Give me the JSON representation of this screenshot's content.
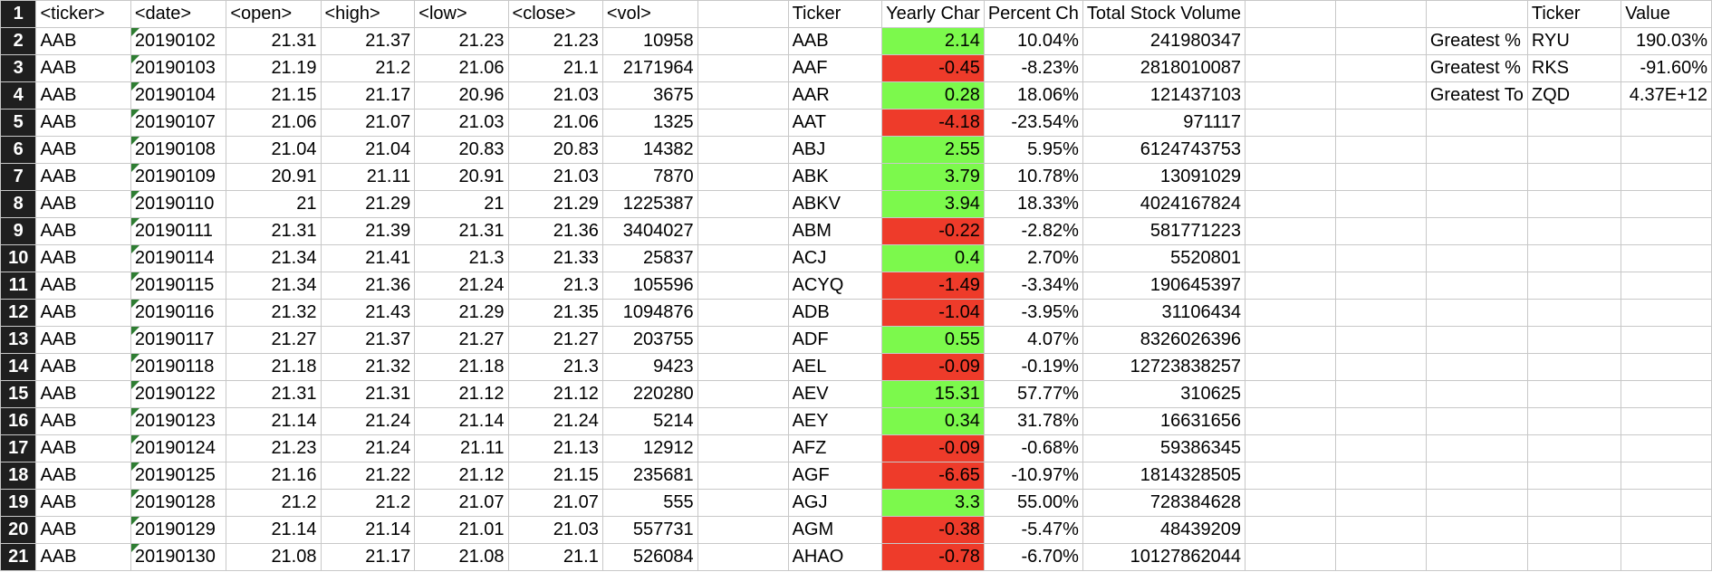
{
  "headers": {
    "row_number": "1",
    "A": "<ticker>",
    "B": "<date>",
    "C": "<open>",
    "D": "<high>",
    "E": "<low>",
    "F": "<close>",
    "G": "<vol>",
    "I": "Ticker",
    "J": "Yearly Char",
    "K": "Percent Ch",
    "L": "Total Stock Volume",
    "P": "Ticker",
    "Q": "Value"
  },
  "rows": [
    {
      "n": "2",
      "ticker": "AAB",
      "date": "20190102",
      "open": "21.31",
      "high": "21.37",
      "low": "21.23",
      "close": "21.23",
      "vol": "10958",
      "s_ticker": "AAB",
      "yearly": "2.14",
      "percent": "10.04%",
      "total": "241980347",
      "sign": "pos",
      "lab": "Greatest %",
      "t2": "RYU",
      "val": "190.03%"
    },
    {
      "n": "3",
      "ticker": "AAB",
      "date": "20190103",
      "open": "21.19",
      "high": "21.2",
      "low": "21.06",
      "close": "21.1",
      "vol": "2171964",
      "s_ticker": "AAF",
      "yearly": "-0.45",
      "percent": "-8.23%",
      "total": "2818010087",
      "sign": "neg",
      "lab": "Greatest %",
      "t2": "RKS",
      "val": "-91.60%"
    },
    {
      "n": "4",
      "ticker": "AAB",
      "date": "20190104",
      "open": "21.15",
      "high": "21.17",
      "low": "20.96",
      "close": "21.03",
      "vol": "3675",
      "s_ticker": "AAR",
      "yearly": "0.28",
      "percent": "18.06%",
      "total": "121437103",
      "sign": "pos",
      "lab": "Greatest To",
      "t2": "ZQD",
      "val": "4.37E+12"
    },
    {
      "n": "5",
      "ticker": "AAB",
      "date": "20190107",
      "open": "21.06",
      "high": "21.07",
      "low": "21.03",
      "close": "21.06",
      "vol": "1325",
      "s_ticker": "AAT",
      "yearly": "-4.18",
      "percent": "-23.54%",
      "total": "971117",
      "sign": "neg",
      "lab": "",
      "t2": "",
      "val": ""
    },
    {
      "n": "6",
      "ticker": "AAB",
      "date": "20190108",
      "open": "21.04",
      "high": "21.04",
      "low": "20.83",
      "close": "20.83",
      "vol": "14382",
      "s_ticker": "ABJ",
      "yearly": "2.55",
      "percent": "5.95%",
      "total": "6124743753",
      "sign": "pos",
      "lab": "",
      "t2": "",
      "val": ""
    },
    {
      "n": "7",
      "ticker": "AAB",
      "date": "20190109",
      "open": "20.91",
      "high": "21.11",
      "low": "20.91",
      "close": "21.03",
      "vol": "7870",
      "s_ticker": "ABK",
      "yearly": "3.79",
      "percent": "10.78%",
      "total": "13091029",
      "sign": "pos",
      "lab": "",
      "t2": "",
      "val": ""
    },
    {
      "n": "8",
      "ticker": "AAB",
      "date": "20190110",
      "open": "21",
      "high": "21.29",
      "low": "21",
      "close": "21.29",
      "vol": "1225387",
      "s_ticker": "ABKV",
      "yearly": "3.94",
      "percent": "18.33%",
      "total": "4024167824",
      "sign": "pos",
      "lab": "",
      "t2": "",
      "val": ""
    },
    {
      "n": "9",
      "ticker": "AAB",
      "date": "20190111",
      "open": "21.31",
      "high": "21.39",
      "low": "21.31",
      "close": "21.36",
      "vol": "3404027",
      "s_ticker": "ABM",
      "yearly": "-0.22",
      "percent": "-2.82%",
      "total": "581771223",
      "sign": "neg",
      "lab": "",
      "t2": "",
      "val": ""
    },
    {
      "n": "10",
      "ticker": "AAB",
      "date": "20190114",
      "open": "21.34",
      "high": "21.41",
      "low": "21.3",
      "close": "21.33",
      "vol": "25837",
      "s_ticker": "ACJ",
      "yearly": "0.4",
      "percent": "2.70%",
      "total": "5520801",
      "sign": "pos",
      "lab": "",
      "t2": "",
      "val": ""
    },
    {
      "n": "11",
      "ticker": "AAB",
      "date": "20190115",
      "open": "21.34",
      "high": "21.36",
      "low": "21.24",
      "close": "21.3",
      "vol": "105596",
      "s_ticker": "ACYQ",
      "yearly": "-1.49",
      "percent": "-3.34%",
      "total": "190645397",
      "sign": "neg",
      "lab": "",
      "t2": "",
      "val": ""
    },
    {
      "n": "12",
      "ticker": "AAB",
      "date": "20190116",
      "open": "21.32",
      "high": "21.43",
      "low": "21.29",
      "close": "21.35",
      "vol": "1094876",
      "s_ticker": "ADB",
      "yearly": "-1.04",
      "percent": "-3.95%",
      "total": "31106434",
      "sign": "neg",
      "lab": "",
      "t2": "",
      "val": ""
    },
    {
      "n": "13",
      "ticker": "AAB",
      "date": "20190117",
      "open": "21.27",
      "high": "21.37",
      "low": "21.27",
      "close": "21.27",
      "vol": "203755",
      "s_ticker": "ADF",
      "yearly": "0.55",
      "percent": "4.07%",
      "total": "8326026396",
      "sign": "pos",
      "lab": "",
      "t2": "",
      "val": ""
    },
    {
      "n": "14",
      "ticker": "AAB",
      "date": "20190118",
      "open": "21.18",
      "high": "21.32",
      "low": "21.18",
      "close": "21.3",
      "vol": "9423",
      "s_ticker": "AEL",
      "yearly": "-0.09",
      "percent": "-0.19%",
      "total": "12723838257",
      "sign": "neg",
      "lab": "",
      "t2": "",
      "val": ""
    },
    {
      "n": "15",
      "ticker": "AAB",
      "date": "20190122",
      "open": "21.31",
      "high": "21.31",
      "low": "21.12",
      "close": "21.12",
      "vol": "220280",
      "s_ticker": "AEV",
      "yearly": "15.31",
      "percent": "57.77%",
      "total": "310625",
      "sign": "pos",
      "lab": "",
      "t2": "",
      "val": ""
    },
    {
      "n": "16",
      "ticker": "AAB",
      "date": "20190123",
      "open": "21.14",
      "high": "21.24",
      "low": "21.14",
      "close": "21.24",
      "vol": "5214",
      "s_ticker": "AEY",
      "yearly": "0.34",
      "percent": "31.78%",
      "total": "16631656",
      "sign": "pos",
      "lab": "",
      "t2": "",
      "val": ""
    },
    {
      "n": "17",
      "ticker": "AAB",
      "date": "20190124",
      "open": "21.23",
      "high": "21.24",
      "low": "21.11",
      "close": "21.13",
      "vol": "12912",
      "s_ticker": "AFZ",
      "yearly": "-0.09",
      "percent": "-0.68%",
      "total": "59386345",
      "sign": "neg",
      "lab": "",
      "t2": "",
      "val": ""
    },
    {
      "n": "18",
      "ticker": "AAB",
      "date": "20190125",
      "open": "21.16",
      "high": "21.22",
      "low": "21.12",
      "close": "21.15",
      "vol": "235681",
      "s_ticker": "AGF",
      "yearly": "-6.65",
      "percent": "-10.97%",
      "total": "1814328505",
      "sign": "neg",
      "lab": "",
      "t2": "",
      "val": ""
    },
    {
      "n": "19",
      "ticker": "AAB",
      "date": "20190128",
      "open": "21.2",
      "high": "21.2",
      "low": "21.07",
      "close": "21.07",
      "vol": "555",
      "s_ticker": "AGJ",
      "yearly": "3.3",
      "percent": "55.00%",
      "total": "728384628",
      "sign": "pos",
      "lab": "",
      "t2": "",
      "val": ""
    },
    {
      "n": "20",
      "ticker": "AAB",
      "date": "20190129",
      "open": "21.14",
      "high": "21.14",
      "low": "21.01",
      "close": "21.03",
      "vol": "557731",
      "s_ticker": "AGM",
      "yearly": "-0.38",
      "percent": "-5.47%",
      "total": "48439209",
      "sign": "neg",
      "lab": "",
      "t2": "",
      "val": ""
    },
    {
      "n": "21",
      "ticker": "AAB",
      "date": "20190130",
      "open": "21.08",
      "high": "21.17",
      "low": "21.08",
      "close": "21.1",
      "vol": "526084",
      "s_ticker": "AHAO",
      "yearly": "-0.78",
      "percent": "-6.70%",
      "total": "10127862044",
      "sign": "neg",
      "lab": "",
      "t2": "",
      "val": ""
    }
  ],
  "colors": {
    "positive_fill": "#7cf94c",
    "negative_fill": "#ee3b2a",
    "row_header_bg": "#1f1f1f",
    "grid_line": "#c8c8c8"
  }
}
